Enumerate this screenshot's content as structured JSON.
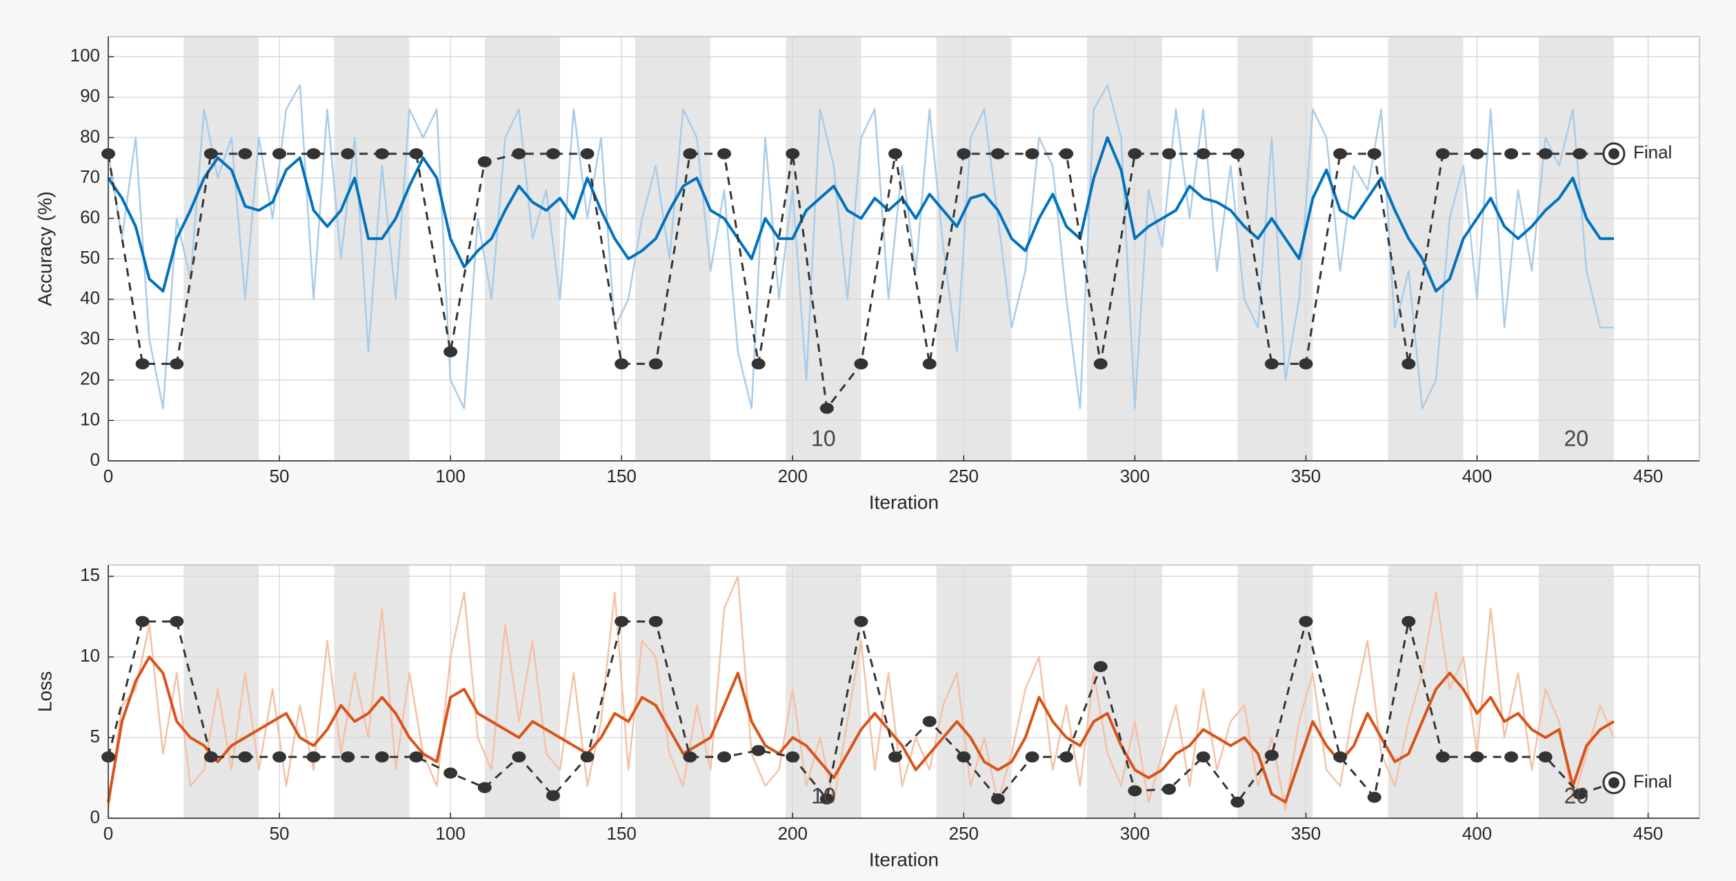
{
  "chart_data": [
    {
      "type": "line",
      "xlabel": "Iteration",
      "ylabel": "Accuracy (%)",
      "xlim": [
        0,
        465
      ],
      "ylim": [
        0,
        105
      ],
      "xticks": [
        0,
        50,
        100,
        150,
        200,
        250,
        300,
        350,
        400,
        450
      ],
      "yticks": [
        0,
        10,
        20,
        30,
        40,
        50,
        60,
        70,
        80,
        90,
        100
      ],
      "grid": true,
      "shaded_epochs": [
        {
          "epoch": 2,
          "start": 22,
          "end": 44
        },
        {
          "epoch": 4,
          "start": 66,
          "end": 88
        },
        {
          "epoch": 6,
          "start": 110,
          "end": 132
        },
        {
          "epoch": 8,
          "start": 154,
          "end": 176
        },
        {
          "epoch": 10,
          "start": 198,
          "end": 220
        },
        {
          "epoch": 12,
          "start": 242,
          "end": 264
        },
        {
          "epoch": 14,
          "start": 286,
          "end": 308
        },
        {
          "epoch": 16,
          "start": 330,
          "end": 352
        },
        {
          "epoch": 18,
          "start": 374,
          "end": 396
        },
        {
          "epoch": 20,
          "start": 418,
          "end": 440
        }
      ],
      "epoch_labels": [
        10,
        20
      ],
      "x": [
        0,
        4,
        8,
        12,
        16,
        20,
        24,
        28,
        32,
        36,
        40,
        44,
        48,
        52,
        56,
        60,
        64,
        68,
        72,
        76,
        80,
        84,
        88,
        92,
        96,
        100,
        104,
        108,
        112,
        116,
        120,
        124,
        128,
        132,
        136,
        140,
        144,
        148,
        152,
        156,
        160,
        164,
        168,
        172,
        176,
        180,
        184,
        188,
        192,
        196,
        200,
        204,
        208,
        212,
        216,
        220,
        224,
        228,
        232,
        236,
        240,
        244,
        248,
        252,
        256,
        260,
        264,
        268,
        272,
        276,
        280,
        284,
        288,
        292,
        296,
        300,
        304,
        308,
        312,
        316,
        320,
        324,
        328,
        332,
        336,
        340,
        344,
        348,
        352,
        356,
        360,
        364,
        368,
        372,
        376,
        380,
        384,
        388,
        392,
        396,
        400,
        404,
        408,
        412,
        416,
        420,
        424,
        428,
        432,
        436,
        440
      ],
      "series": [
        {
          "color": "#a9cce8",
          "width": 2.5,
          "values": [
            76,
            55,
            80,
            30,
            13,
            60,
            45,
            87,
            70,
            80,
            40,
            80,
            60,
            87,
            93,
            40,
            87,
            50,
            80,
            27,
            73,
            40,
            87,
            80,
            87,
            20,
            13,
            60,
            40,
            80,
            87,
            55,
            67,
            40,
            87,
            60,
            80,
            33,
            40,
            60,
            73,
            50,
            87,
            80,
            47,
            67,
            27,
            13,
            80,
            40,
            67,
            20,
            87,
            73,
            40,
            80,
            87,
            40,
            73,
            47,
            87,
            53,
            27,
            80,
            87,
            60,
            33,
            47,
            80,
            73,
            40,
            13,
            87,
            93,
            80,
            13,
            67,
            53,
            87,
            60,
            87,
            47,
            73,
            40,
            33,
            80,
            20,
            40,
            87,
            80,
            47,
            73,
            67,
            87,
            33,
            47,
            13,
            20,
            60,
            73,
            40,
            87,
            33,
            67,
            47,
            80,
            73,
            87,
            47,
            33,
            33
          ]
        },
        {
          "color": "#0072bd",
          "width": 4,
          "values": [
            70,
            65,
            58,
            45,
            42,
            55,
            62,
            70,
            75,
            72,
            63,
            62,
            64,
            72,
            75,
            62,
            58,
            62,
            70,
            55,
            55,
            60,
            68,
            75,
            70,
            55,
            48,
            52,
            55,
            62,
            68,
            64,
            62,
            65,
            60,
            70,
            62,
            55,
            50,
            52,
            55,
            62,
            68,
            70,
            62,
            60,
            55,
            50,
            60,
            55,
            55,
            62,
            65,
            68,
            62,
            60,
            65,
            62,
            65,
            60,
            66,
            62,
            58,
            65,
            66,
            62,
            55,
            52,
            60,
            66,
            58,
            55,
            70,
            80,
            72,
            55,
            58,
            60,
            62,
            68,
            65,
            64,
            62,
            58,
            55,
            60,
            55,
            50,
            65,
            72,
            62,
            60,
            65,
            70,
            62,
            55,
            50,
            42,
            45,
            55,
            60,
            65,
            58,
            55,
            58,
            62,
            65,
            70,
            60,
            55,
            55
          ]
        },
        {
          "color": "#333333",
          "width": 3,
          "dashed": true,
          "marker": true,
          "x": [
            0,
            10,
            20,
            30,
            40,
            50,
            60,
            70,
            80,
            90,
            100,
            110,
            120,
            130,
            140,
            150,
            160,
            170,
            180,
            190,
            200,
            210,
            220,
            230,
            240,
            250,
            260,
            270,
            280,
            290,
            300,
            310,
            320,
            330,
            340,
            350,
            360,
            370,
            380,
            390,
            400,
            410,
            420,
            430
          ],
          "values": [
            76,
            24,
            24,
            76,
            76,
            76,
            76,
            76,
            76,
            76,
            27,
            74,
            76,
            76,
            76,
            24,
            24,
            76,
            76,
            24,
            76,
            13,
            24,
            76,
            24,
            76,
            76,
            76,
            76,
            24,
            76,
            76,
            76,
            76,
            24,
            24,
            76,
            76,
            24,
            76,
            76,
            76,
            76,
            76
          ]
        }
      ],
      "final": {
        "label": "Final",
        "x": 440,
        "value": 76
      }
    },
    {
      "type": "line",
      "xlabel": "Iteration",
      "ylabel": "Loss",
      "xlim": [
        0,
        465
      ],
      "ylim": [
        0,
        15.7
      ],
      "xticks": [
        0,
        50,
        100,
        150,
        200,
        250,
        300,
        350,
        400,
        450
      ],
      "yticks": [
        0,
        5,
        10,
        15
      ],
      "grid": true,
      "shaded_epochs": [
        {
          "epoch": 2,
          "start": 22,
          "end": 44
        },
        {
          "epoch": 4,
          "start": 66,
          "end": 88
        },
        {
          "epoch": 6,
          "start": 110,
          "end": 132
        },
        {
          "epoch": 8,
          "start": 154,
          "end": 176
        },
        {
          "epoch": 10,
          "start": 198,
          "end": 220
        },
        {
          "epoch": 12,
          "start": 242,
          "end": 264
        },
        {
          "epoch": 14,
          "start": 286,
          "end": 308
        },
        {
          "epoch": 16,
          "start": 330,
          "end": 352
        },
        {
          "epoch": 18,
          "start": 374,
          "end": 396
        },
        {
          "epoch": 20,
          "start": 418,
          "end": 440
        }
      ],
      "epoch_labels": [
        10,
        20
      ],
      "x": [
        0,
        4,
        8,
        12,
        16,
        20,
        24,
        28,
        32,
        36,
        40,
        44,
        48,
        52,
        56,
        60,
        64,
        68,
        72,
        76,
        80,
        84,
        88,
        92,
        96,
        100,
        104,
        108,
        112,
        116,
        120,
        124,
        128,
        132,
        136,
        140,
        144,
        148,
        152,
        156,
        160,
        164,
        168,
        172,
        176,
        180,
        184,
        188,
        192,
        196,
        200,
        204,
        208,
        212,
        216,
        220,
        224,
        228,
        232,
        236,
        240,
        244,
        248,
        252,
        256,
        260,
        264,
        268,
        272,
        276,
        280,
        284,
        288,
        292,
        296,
        300,
        304,
        308,
        312,
        316,
        320,
        324,
        328,
        332,
        336,
        340,
        344,
        348,
        352,
        356,
        360,
        364,
        368,
        372,
        376,
        380,
        384,
        388,
        392,
        396,
        400,
        404,
        408,
        412,
        416,
        420,
        424,
        428,
        432,
        436,
        440
      ],
      "series": [
        {
          "color": "#f5c0a4",
          "width": 2.5,
          "values": [
            0.5,
            7,
            8,
            12,
            4,
            9,
            2,
            3,
            8,
            3,
            9,
            3,
            8,
            2,
            7,
            3,
            11,
            4,
            9,
            5,
            13,
            3,
            9,
            4,
            2,
            10,
            14,
            5,
            3,
            12,
            6,
            11,
            4,
            3,
            9,
            2,
            6,
            14,
            3,
            11,
            10,
            4,
            2,
            7,
            3,
            13,
            15,
            4,
            2,
            3,
            8,
            2,
            5,
            1,
            6,
            11,
            3,
            9,
            2,
            5,
            3,
            7,
            9,
            2,
            5,
            1,
            4,
            8,
            10,
            3,
            7,
            2,
            9,
            4,
            2,
            6,
            1,
            4,
            7,
            2,
            8,
            3,
            6,
            7,
            2,
            5,
            0.5,
            6,
            9,
            3,
            2,
            7,
            11,
            4,
            2,
            6,
            9,
            14,
            8,
            10,
            4,
            13,
            5,
            9,
            3,
            8,
            6,
            1,
            4,
            7,
            5
          ]
        },
        {
          "color": "#d95319",
          "width": 4,
          "values": [
            1,
            6,
            8.5,
            10,
            9,
            6,
            5,
            4.5,
            3.5,
            4.5,
            5,
            5.5,
            6,
            6.5,
            5,
            4.5,
            5.5,
            7,
            6,
            6.5,
            7.5,
            6.5,
            5,
            4,
            3.5,
            7.5,
            8,
            6.5,
            6,
            5.5,
            5,
            6,
            5.5,
            5,
            4.5,
            4,
            5,
            6.5,
            6,
            7.5,
            7,
            5.5,
            4,
            4.5,
            5,
            7,
            9,
            6,
            4.5,
            4,
            5,
            4.5,
            3.5,
            2.5,
            4,
            5.5,
            6.5,
            5.5,
            4.5,
            3,
            4,
            5,
            6,
            5,
            3.5,
            3,
            3.5,
            5,
            7.5,
            6,
            5,
            4.5,
            6,
            6.5,
            4.5,
            3,
            2.5,
            3,
            4,
            4.5,
            5.5,
            5,
            4.5,
            5,
            4,
            1.5,
            1,
            3.5,
            6,
            4.5,
            3.5,
            4.5,
            6.5,
            5,
            3.5,
            4,
            6,
            8,
            9,
            8,
            6.5,
            7.5,
            6,
            6.5,
            5.5,
            5,
            5.5,
            2,
            4.5,
            5.5,
            6
          ]
        },
        {
          "color": "#333333",
          "width": 3,
          "dashed": true,
          "marker": true,
          "x": [
            0,
            10,
            20,
            30,
            40,
            50,
            60,
            70,
            80,
            90,
            100,
            110,
            120,
            130,
            140,
            150,
            160,
            170,
            180,
            190,
            200,
            210,
            220,
            230,
            240,
            250,
            260,
            270,
            280,
            290,
            300,
            310,
            320,
            330,
            340,
            350,
            360,
            370,
            380,
            390,
            400,
            410,
            420,
            430
          ],
          "values": [
            3.8,
            12.2,
            12.2,
            3.8,
            3.8,
            3.8,
            3.8,
            3.8,
            3.8,
            3.8,
            2.8,
            1.9,
            3.8,
            1.4,
            3.8,
            12.2,
            12.2,
            3.8,
            3.8,
            4.2,
            3.8,
            1.2,
            12.2,
            3.8,
            6.0,
            3.8,
            1.2,
            3.8,
            3.8,
            9.4,
            1.7,
            1.8,
            3.8,
            1.0,
            3.9,
            12.2,
            3.8,
            1.3,
            12.2,
            3.8,
            3.8,
            3.8,
            3.8,
            1.5
          ]
        }
      ],
      "final": {
        "label": "Final",
        "x": 440,
        "value": 2.2
      }
    }
  ]
}
